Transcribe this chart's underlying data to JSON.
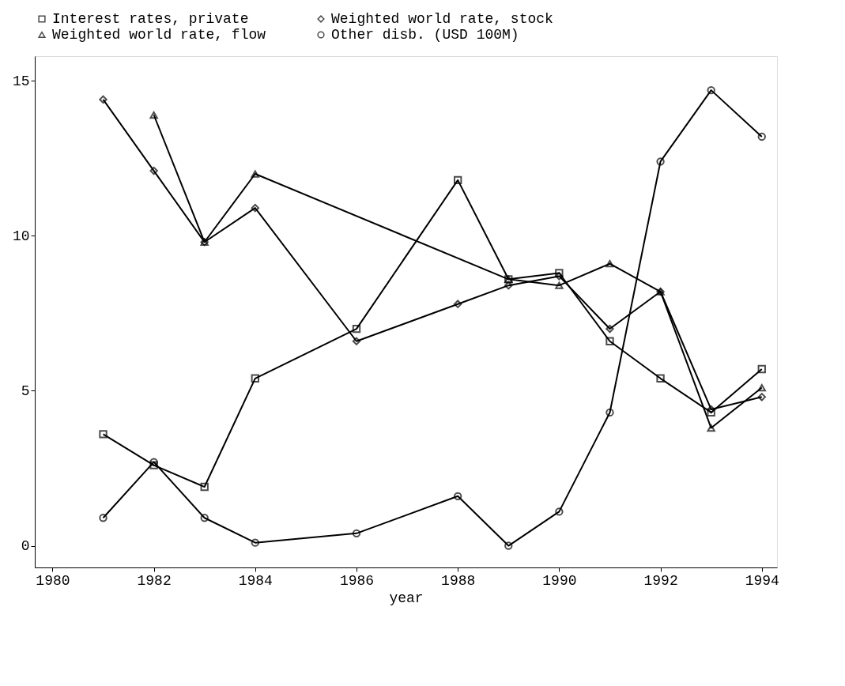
{
  "chart_data": {
    "type": "line",
    "xlabel": "year",
    "xlim": [
      1979.65,
      1994.3
    ],
    "xticks": [
      1980,
      1982,
      1984,
      1986,
      1988,
      1990,
      1992,
      1994
    ],
    "ylim": [
      -0.7,
      15.8
    ],
    "yticks": [
      0,
      5,
      10,
      15
    ],
    "grid": false,
    "legend": "top",
    "series": [
      {
        "name": "Interest rates, private",
        "color": "#000000",
        "marker": "square",
        "x": [
          1981,
          1982,
          1983,
          1984,
          1986,
          1988,
          1989,
          1990,
          1991,
          1992,
          1993,
          1994
        ],
        "values": [
          3.6,
          2.6,
          1.9,
          5.4,
          7.0,
          11.8,
          8.6,
          8.8,
          6.6,
          5.4,
          4.3,
          5.7
        ]
      },
      {
        "name": "Weighted world rate, stock",
        "color": "#000000",
        "marker": "diamond",
        "x": [
          1981,
          1982,
          1983,
          1984,
          1986,
          1988,
          1989,
          1990,
          1991,
          1992,
          1993,
          1994
        ],
        "values": [
          14.4,
          12.1,
          9.8,
          10.9,
          6.6,
          7.8,
          8.4,
          8.7,
          7.0,
          8.2,
          4.4,
          4.8
        ]
      },
      {
        "name": "Weighted world rate, flow",
        "color": "#000000",
        "marker": "triangle",
        "x": [
          1982,
          1983,
          1984,
          1989,
          1990,
          1991,
          1992,
          1993,
          1994
        ],
        "values": [
          13.9,
          9.8,
          12.0,
          8.6,
          8.4,
          9.1,
          8.2,
          3.8,
          5.1
        ]
      },
      {
        "name": "Other disb. (USD 100M)",
        "color": "#000000",
        "marker": "circle",
        "x": [
          1981,
          1982,
          1983,
          1984,
          1986,
          1988,
          1989,
          1990,
          1991,
          1992,
          1993,
          1994
        ],
        "values": [
          0.9,
          2.7,
          0.9,
          0.1,
          0.4,
          1.6,
          0.0,
          1.1,
          4.3,
          12.4,
          14.7,
          13.2
        ]
      }
    ]
  }
}
